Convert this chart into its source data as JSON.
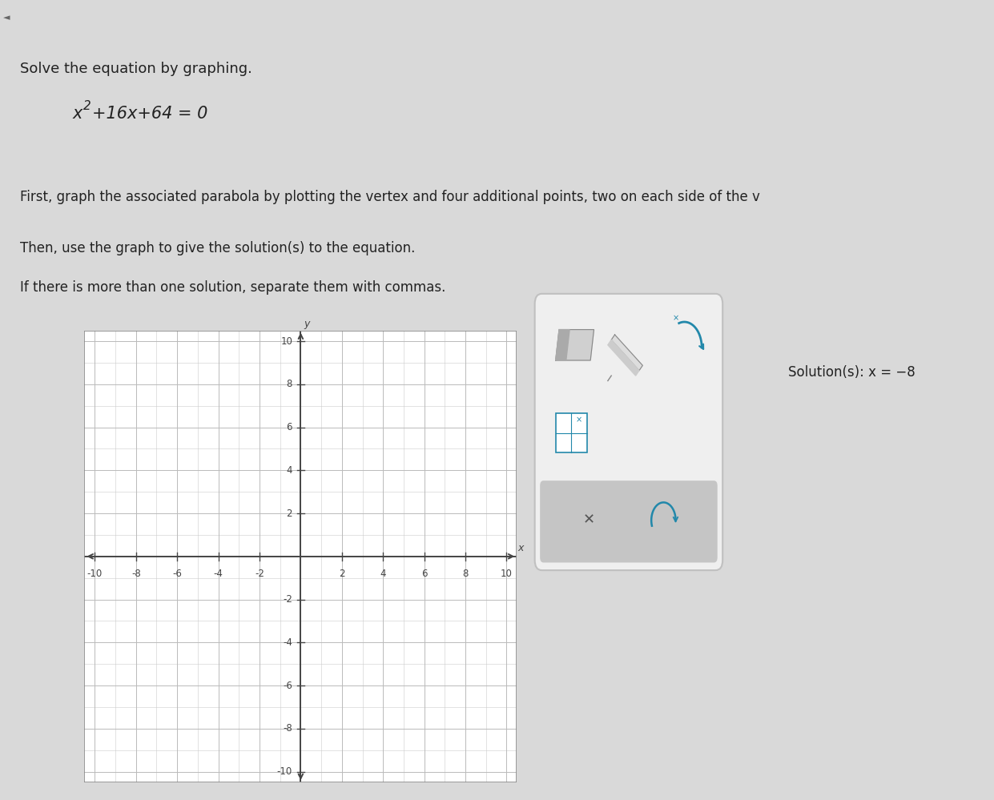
{
  "title_text": "Solve the equation by graphing.",
  "equation_parts": [
    "x",
    "2",
    "+16x+64 = 0"
  ],
  "instruction1": "First, graph the associated parabola by plotting the vertex and four additional points, two on each side of the v",
  "instruction2_line1": "Then, use the graph to give the solution(s) to the equation.",
  "instruction2_line2": "If there is more than one solution, separate them with commas.",
  "solution_text": "Solution(s): x = −8",
  "page_bg": "#d9d9d9",
  "top_bar_bg": "#b0b0b0",
  "content_bg": "#d9d9d9",
  "graph_bg": "#ffffff",
  "grid_minor_color": "#cccccc",
  "grid_major_color": "#bbbbbb",
  "axis_color": "#444444",
  "tick_label_color": "#444444",
  "border_color": "#999999",
  "x_range": [
    -10,
    10
  ],
  "y_range": [
    -10,
    10
  ],
  "x_ticks": [
    -10,
    -8,
    -6,
    -4,
    -2,
    2,
    4,
    6,
    8,
    10
  ],
  "y_ticks": [
    -10,
    -8,
    -6,
    -4,
    -2,
    2,
    4,
    6,
    8,
    10
  ],
  "font_size_title": 13,
  "font_size_eq": 14,
  "font_size_instruction": 12,
  "font_size_tick": 8.5,
  "font_size_solution": 12
}
